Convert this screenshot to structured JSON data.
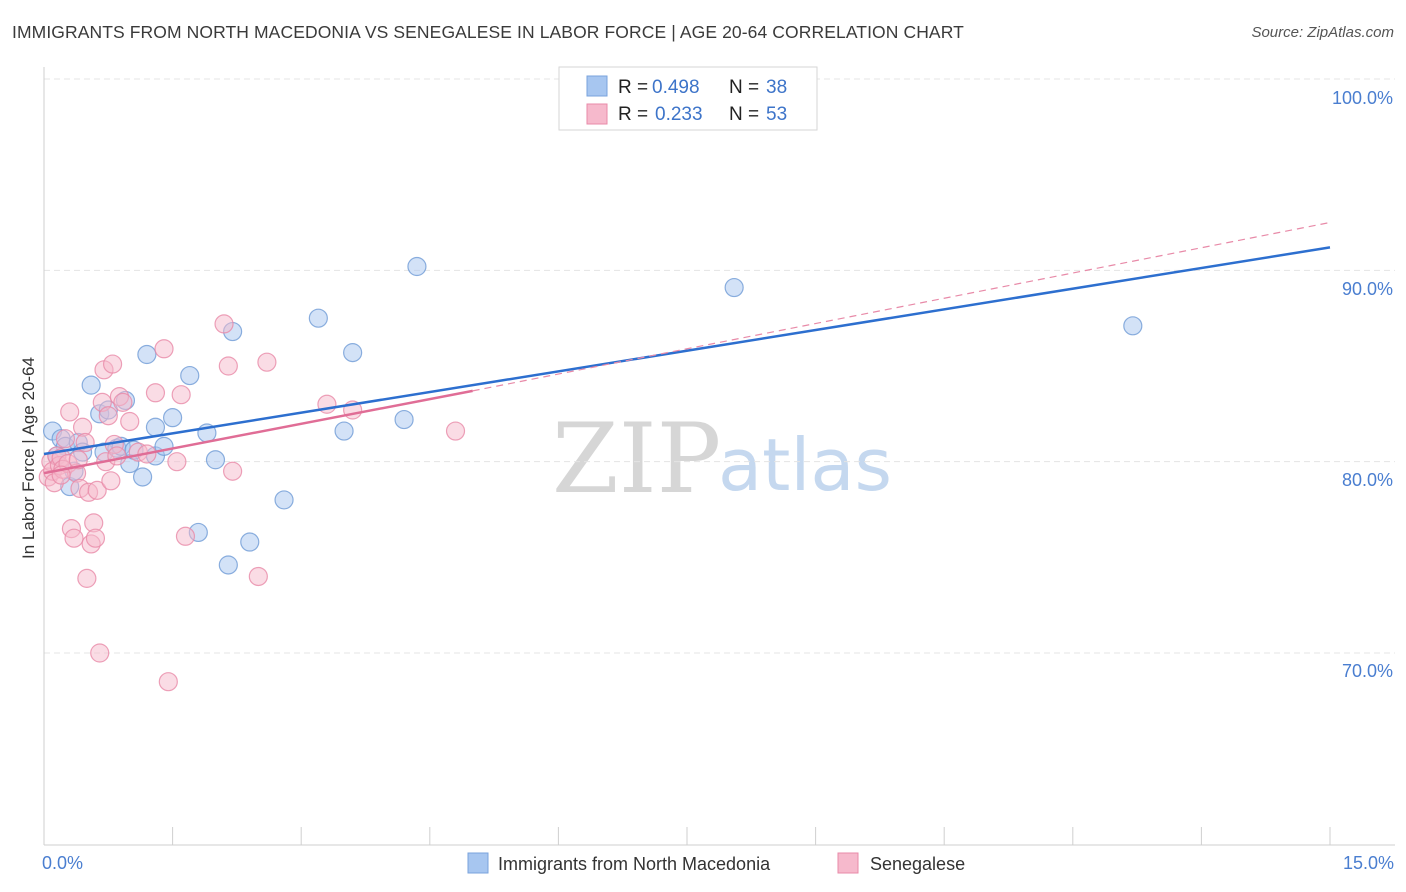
{
  "title": "IMMIGRANTS FROM NORTH MACEDONIA VS SENEGALESE IN LABOR FORCE | AGE 20-64 CORRELATION CHART",
  "source": "Source: ZipAtlas.com",
  "watermark": {
    "zip": "ZIP",
    "atlas": "atlas"
  },
  "chart_data": {
    "type": "scatter",
    "title": "IMMIGRANTS FROM NORTH MACEDONIA VS SENEGALESE IN LABOR FORCE | AGE 20-64 CORRELATION CHART",
    "xlabel": "",
    "ylabel": "In Labor Force | Age 20-64",
    "xlim": [
      0,
      15
    ],
    "ylim": [
      60,
      102
    ],
    "x_tick_labels": [
      "0.0%",
      "15.0%"
    ],
    "y_ticks": [
      70,
      80,
      90,
      100
    ],
    "y_tick_labels": [
      "70.0%",
      "80.0%",
      "90.0%",
      "100.0%"
    ],
    "grid": true,
    "legend": [
      {
        "name": "Immigrants from North Macedonia",
        "r_label": "R =",
        "r": "0.498",
        "n_label": "N =",
        "n": "38",
        "color": "#a7c6f0",
        "stroke": "#7aa3dc"
      },
      {
        "name": "Senegalese",
        "r_label": "R =",
        "r": "0.233",
        "n_label": "N =",
        "n": "53",
        "color": "#f6b9cc",
        "stroke": "#e88aa8"
      }
    ],
    "series": [
      {
        "name": "Immigrants from North Macedonia",
        "color": "#a7c6f0",
        "stroke": "#6f9bd6",
        "trend": {
          "x": [
            0,
            15
          ],
          "y": [
            80.4,
            91.2
          ],
          "color": "#2d6fcf"
        },
        "points": [
          [
            0.1,
            81.6
          ],
          [
            0.2,
            81.2
          ],
          [
            0.25,
            80.8
          ],
          [
            0.3,
            78.7
          ],
          [
            0.4,
            81.0
          ],
          [
            0.45,
            80.5
          ],
          [
            0.55,
            84.0
          ],
          [
            0.65,
            82.5
          ],
          [
            0.7,
            80.5
          ],
          [
            0.75,
            82.7
          ],
          [
            0.85,
            80.7
          ],
          [
            0.9,
            80.8
          ],
          [
            0.95,
            83.2
          ],
          [
            1.0,
            79.9
          ],
          [
            1.05,
            80.6
          ],
          [
            1.15,
            79.2
          ],
          [
            1.2,
            85.6
          ],
          [
            1.3,
            80.3
          ],
          [
            1.3,
            81.8
          ],
          [
            1.4,
            80.8
          ],
          [
            1.5,
            82.3
          ],
          [
            1.7,
            84.5
          ],
          [
            1.8,
            76.3
          ],
          [
            1.9,
            81.5
          ],
          [
            2.0,
            80.1
          ],
          [
            2.15,
            74.6
          ],
          [
            2.2,
            86.8
          ],
          [
            2.4,
            75.8
          ],
          [
            2.8,
            78.0
          ],
          [
            3.2,
            87.5
          ],
          [
            3.5,
            81.6
          ],
          [
            3.6,
            85.7
          ],
          [
            4.2,
            82.2
          ],
          [
            4.35,
            90.2
          ],
          [
            8.05,
            89.1
          ],
          [
            12.7,
            87.1
          ],
          [
            0.15,
            80.3
          ],
          [
            0.35,
            79.5
          ]
        ]
      },
      {
        "name": "Senegalese",
        "color": "#f6b9cc",
        "stroke": "#e88aa8",
        "trend": {
          "x": [
            0,
            5
          ],
          "y": [
            79.4,
            83.7
          ],
          "color": "#e06d96"
        },
        "trend_dashed": {
          "x": [
            5,
            15
          ],
          "y": [
            83.7,
            92.5
          ],
          "color": "#e88aa8"
        },
        "points": [
          [
            0.05,
            79.2
          ],
          [
            0.08,
            80.0
          ],
          [
            0.1,
            79.5
          ],
          [
            0.12,
            78.9
          ],
          [
            0.15,
            80.3
          ],
          [
            0.18,
            79.8
          ],
          [
            0.2,
            80.2
          ],
          [
            0.22,
            79.6
          ],
          [
            0.25,
            81.2
          ],
          [
            0.28,
            79.9
          ],
          [
            0.3,
            82.6
          ],
          [
            0.32,
            76.5
          ],
          [
            0.35,
            76.0
          ],
          [
            0.38,
            79.4
          ],
          [
            0.4,
            80.1
          ],
          [
            0.42,
            78.6
          ],
          [
            0.45,
            81.8
          ],
          [
            0.48,
            81.0
          ],
          [
            0.5,
            73.9
          ],
          [
            0.52,
            78.4
          ],
          [
            0.55,
            75.7
          ],
          [
            0.58,
            76.8
          ],
          [
            0.6,
            76.0
          ],
          [
            0.62,
            78.5
          ],
          [
            0.65,
            70.0
          ],
          [
            0.68,
            83.1
          ],
          [
            0.7,
            84.8
          ],
          [
            0.72,
            80.0
          ],
          [
            0.75,
            82.4
          ],
          [
            0.78,
            79.0
          ],
          [
            0.8,
            85.1
          ],
          [
            0.82,
            80.9
          ],
          [
            0.85,
            80.3
          ],
          [
            0.88,
            83.4
          ],
          [
            0.92,
            83.1
          ],
          [
            1.0,
            82.1
          ],
          [
            1.1,
            80.5
          ],
          [
            1.2,
            80.4
          ],
          [
            1.3,
            83.6
          ],
          [
            1.4,
            85.9
          ],
          [
            1.45,
            68.5
          ],
          [
            1.55,
            80.0
          ],
          [
            1.6,
            83.5
          ],
          [
            1.65,
            76.1
          ],
          [
            2.1,
            87.2
          ],
          [
            2.15,
            85.0
          ],
          [
            2.2,
            79.5
          ],
          [
            2.5,
            74.0
          ],
          [
            2.6,
            85.2
          ],
          [
            3.3,
            83.0
          ],
          [
            3.6,
            82.7
          ],
          [
            4.8,
            81.6
          ],
          [
            0.2,
            79.3
          ]
        ]
      }
    ]
  }
}
